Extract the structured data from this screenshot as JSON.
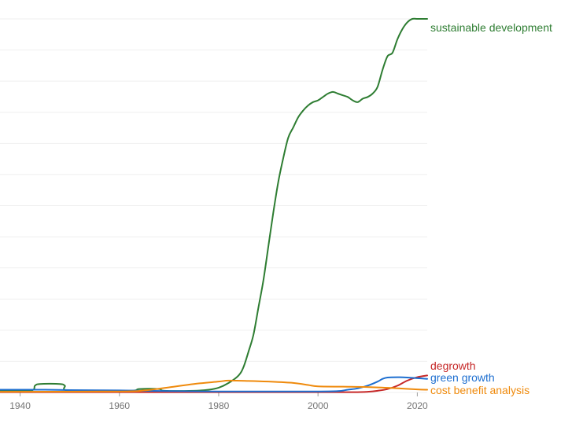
{
  "chart_data": {
    "type": "line",
    "title": "",
    "xlabel": "",
    "ylabel": "",
    "xlim": [
      1935,
      2022
    ],
    "ylim": [
      0,
      1.1
    ],
    "x_ticks": [
      1940,
      1960,
      1980,
      2000,
      2020
    ],
    "grid": true,
    "legend": "inline labels at right end of each series",
    "series": [
      {
        "name": "sustainable development",
        "color": "#2e7d32",
        "points": [
          [
            1935,
            0.005
          ],
          [
            1942,
            0.005
          ],
          [
            1943,
            0.02
          ],
          [
            1944,
            0.025
          ],
          [
            1948,
            0.025
          ],
          [
            1949,
            0.02
          ],
          [
            1950,
            0.005
          ],
          [
            1962,
            0.005
          ],
          [
            1964,
            0.01
          ],
          [
            1968,
            0.01
          ],
          [
            1969,
            0.005
          ],
          [
            1975,
            0.005
          ],
          [
            1978,
            0.008
          ],
          [
            1980,
            0.014
          ],
          [
            1982,
            0.028
          ],
          [
            1984,
            0.05
          ],
          [
            1985,
            0.075
          ],
          [
            1986,
            0.12
          ],
          [
            1987,
            0.17
          ],
          [
            1988,
            0.25
          ],
          [
            1989,
            0.33
          ],
          [
            1990,
            0.43
          ],
          [
            1991,
            0.53
          ],
          [
            1992,
            0.62
          ],
          [
            1993,
            0.69
          ],
          [
            1994,
            0.75
          ],
          [
            1995,
            0.78
          ],
          [
            1996,
            0.81
          ],
          [
            1997,
            0.83
          ],
          [
            1998,
            0.845
          ],
          [
            1999,
            0.855
          ],
          [
            2000,
            0.86
          ],
          [
            2001,
            0.87
          ],
          [
            2002,
            0.88
          ],
          [
            2003,
            0.885
          ],
          [
            2004,
            0.88
          ],
          [
            2005,
            0.875
          ],
          [
            2006,
            0.87
          ],
          [
            2007,
            0.86
          ],
          [
            2008,
            0.855
          ],
          [
            2009,
            0.865
          ],
          [
            2010,
            0.87
          ],
          [
            2011,
            0.88
          ],
          [
            2012,
            0.9
          ],
          [
            2013,
            0.95
          ],
          [
            2014,
            0.99
          ],
          [
            2015,
            1.0
          ],
          [
            2016,
            1.04
          ],
          [
            2017,
            1.07
          ],
          [
            2018,
            1.09
          ],
          [
            2019,
            1.1
          ],
          [
            2020,
            1.1
          ],
          [
            2021,
            1.1
          ],
          [
            2022,
            1.1
          ]
        ]
      },
      {
        "name": "degrowth",
        "color": "#c62828",
        "points": [
          [
            1935,
            0.001
          ],
          [
            2000,
            0.001
          ],
          [
            2008,
            0.001
          ],
          [
            2010,
            0.002
          ],
          [
            2012,
            0.005
          ],
          [
            2014,
            0.01
          ],
          [
            2016,
            0.02
          ],
          [
            2018,
            0.035
          ],
          [
            2020,
            0.045
          ],
          [
            2022,
            0.05
          ]
        ]
      },
      {
        "name": "green growth",
        "color": "#1e6fd0",
        "points": [
          [
            1935,
            0.008
          ],
          [
            1945,
            0.008
          ],
          [
            1950,
            0.007
          ],
          [
            1960,
            0.006
          ],
          [
            1970,
            0.004
          ],
          [
            1980,
            0.003
          ],
          [
            1990,
            0.003
          ],
          [
            2000,
            0.003
          ],
          [
            2004,
            0.004
          ],
          [
            2006,
            0.008
          ],
          [
            2008,
            0.012
          ],
          [
            2010,
            0.02
          ],
          [
            2012,
            0.032
          ],
          [
            2013,
            0.04
          ],
          [
            2014,
            0.044
          ],
          [
            2016,
            0.045
          ],
          [
            2018,
            0.044
          ],
          [
            2020,
            0.042
          ],
          [
            2022,
            0.04
          ]
        ]
      },
      {
        "name": "cost benefit analysis",
        "color": "#ef8a0c",
        "points": [
          [
            1935,
            0.002
          ],
          [
            1960,
            0.003
          ],
          [
            1965,
            0.006
          ],
          [
            1970,
            0.015
          ],
          [
            1975,
            0.025
          ],
          [
            1980,
            0.032
          ],
          [
            1982,
            0.035
          ],
          [
            1986,
            0.034
          ],
          [
            1990,
            0.032
          ],
          [
            1995,
            0.028
          ],
          [
            1998,
            0.022
          ],
          [
            2000,
            0.018
          ],
          [
            2005,
            0.017
          ],
          [
            2010,
            0.016
          ],
          [
            2015,
            0.013
          ],
          [
            2020,
            0.009
          ],
          [
            2022,
            0.008
          ]
        ]
      }
    ]
  }
}
